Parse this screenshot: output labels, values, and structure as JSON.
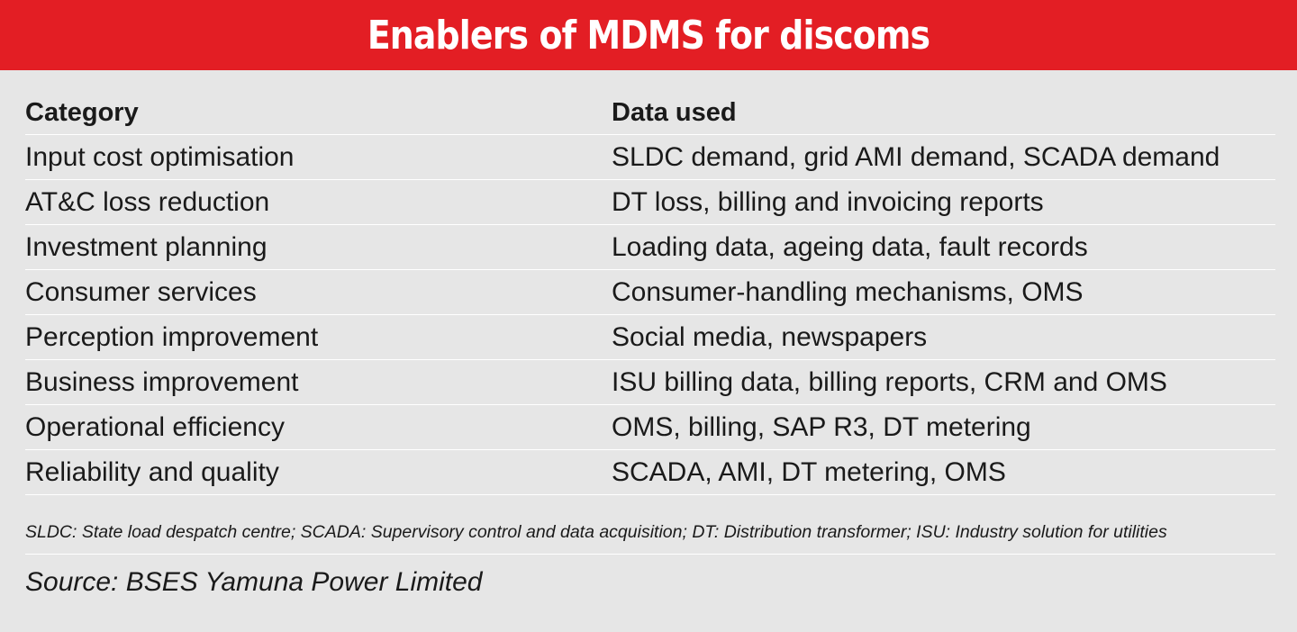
{
  "title": "Enablers of MDMS for discoms",
  "table": {
    "headers": {
      "category": "Category",
      "data_used": "Data used"
    },
    "rows": [
      {
        "category": "Input cost optimisation",
        "data_used": "SLDC demand, grid AMI demand, SCADA demand"
      },
      {
        "category": "AT&C loss reduction",
        "data_used": "DT loss, billing and invoicing reports"
      },
      {
        "category": "Investment planning",
        "data_used": "Loading data, ageing data, fault records"
      },
      {
        "category": "Consumer services",
        "data_used": "Consumer-handling mechanisms, OMS"
      },
      {
        "category": "Perception improvement",
        "data_used": "Social media, newspapers"
      },
      {
        "category": "Business improvement",
        "data_used": "ISU billing data, billing reports, CRM and OMS"
      },
      {
        "category": "Operational efficiency",
        "data_used": "OMS, billing, SAP R3, DT metering"
      },
      {
        "category": "Reliability and quality",
        "data_used": "SCADA, AMI, DT metering, OMS"
      }
    ]
  },
  "footnote": "SLDC: State load despatch centre; SCADA: Supervisory control and data acquisition; DT: Distribution transformer; ISU: Industry solution for utilities",
  "source": "Source: BSES Yamuna Power Limited",
  "colors": {
    "title_bar": "#e31e24",
    "title_text": "#ffffff",
    "background": "#e6e6e6",
    "rule": "#ffffff"
  }
}
